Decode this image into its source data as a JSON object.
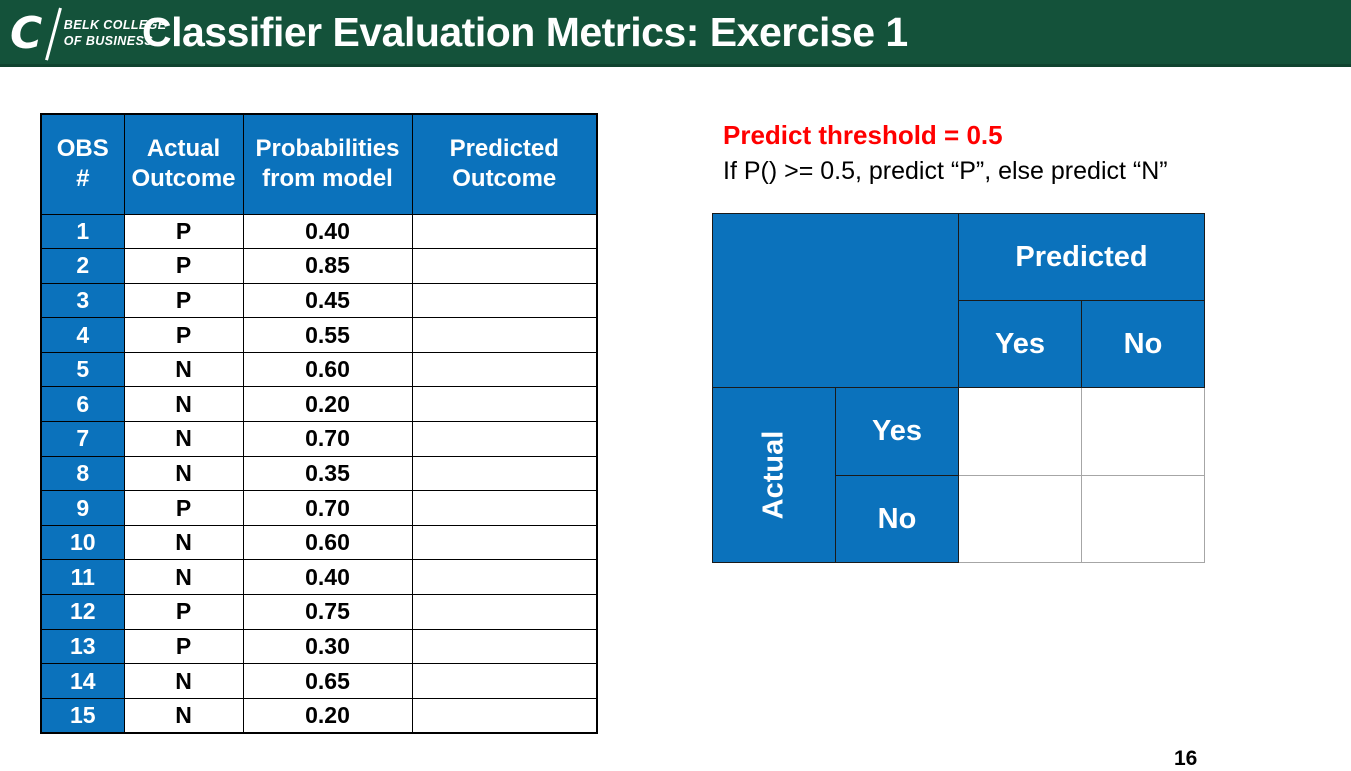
{
  "colors": {
    "header_green": "#14523A",
    "table_blue": "#0B72BC",
    "threshold_red": "#FF0000"
  },
  "header": {
    "title": "Classifier Evaluation Metrics: Exercise 1",
    "logo": {
      "c_glyph": "C",
      "line1": "BELK COLLEGE",
      "line2": "OF BUSINESS"
    }
  },
  "threshold_note": {
    "heading": "Predict threshold = 0.5",
    "rule": "If P() >= 0.5, predict “P”, else predict “N”"
  },
  "obs_table": {
    "columns": [
      {
        "line1": "OBS",
        "line2": "#"
      },
      {
        "line1": "Actual",
        "line2": "Outcome"
      },
      {
        "line1": "Probabilities",
        "line2": "from model"
      },
      {
        "line1": "Predicted",
        "line2": "Outcome"
      }
    ],
    "rows": [
      {
        "obs": "1",
        "actual": "P",
        "prob": "0.40",
        "predicted": ""
      },
      {
        "obs": "2",
        "actual": "P",
        "prob": "0.85",
        "predicted": ""
      },
      {
        "obs": "3",
        "actual": "P",
        "prob": "0.45",
        "predicted": ""
      },
      {
        "obs": "4",
        "actual": "P",
        "prob": "0.55",
        "predicted": ""
      },
      {
        "obs": "5",
        "actual": "N",
        "prob": "0.60",
        "predicted": ""
      },
      {
        "obs": "6",
        "actual": "N",
        "prob": "0.20",
        "predicted": ""
      },
      {
        "obs": "7",
        "actual": "N",
        "prob": "0.70",
        "predicted": ""
      },
      {
        "obs": "8",
        "actual": "N",
        "prob": "0.35",
        "predicted": ""
      },
      {
        "obs": "9",
        "actual": "P",
        "prob": "0.70",
        "predicted": ""
      },
      {
        "obs": "10",
        "actual": "N",
        "prob": "0.60",
        "predicted": ""
      },
      {
        "obs": "11",
        "actual": "N",
        "prob": "0.40",
        "predicted": ""
      },
      {
        "obs": "12",
        "actual": "P",
        "prob": "0.75",
        "predicted": ""
      },
      {
        "obs": "13",
        "actual": "P",
        "prob": "0.30",
        "predicted": ""
      },
      {
        "obs": "14",
        "actual": "N",
        "prob": "0.65",
        "predicted": ""
      },
      {
        "obs": "15",
        "actual": "N",
        "prob": "0.20",
        "predicted": ""
      }
    ]
  },
  "confusion_matrix": {
    "predicted_label": "Predicted",
    "actual_label": "Actual",
    "predicted_options": [
      "Yes",
      "No"
    ],
    "actual_options": [
      "Yes",
      "No"
    ],
    "cells": [
      [
        "",
        ""
      ],
      [
        "",
        ""
      ]
    ]
  },
  "page_number": "16"
}
